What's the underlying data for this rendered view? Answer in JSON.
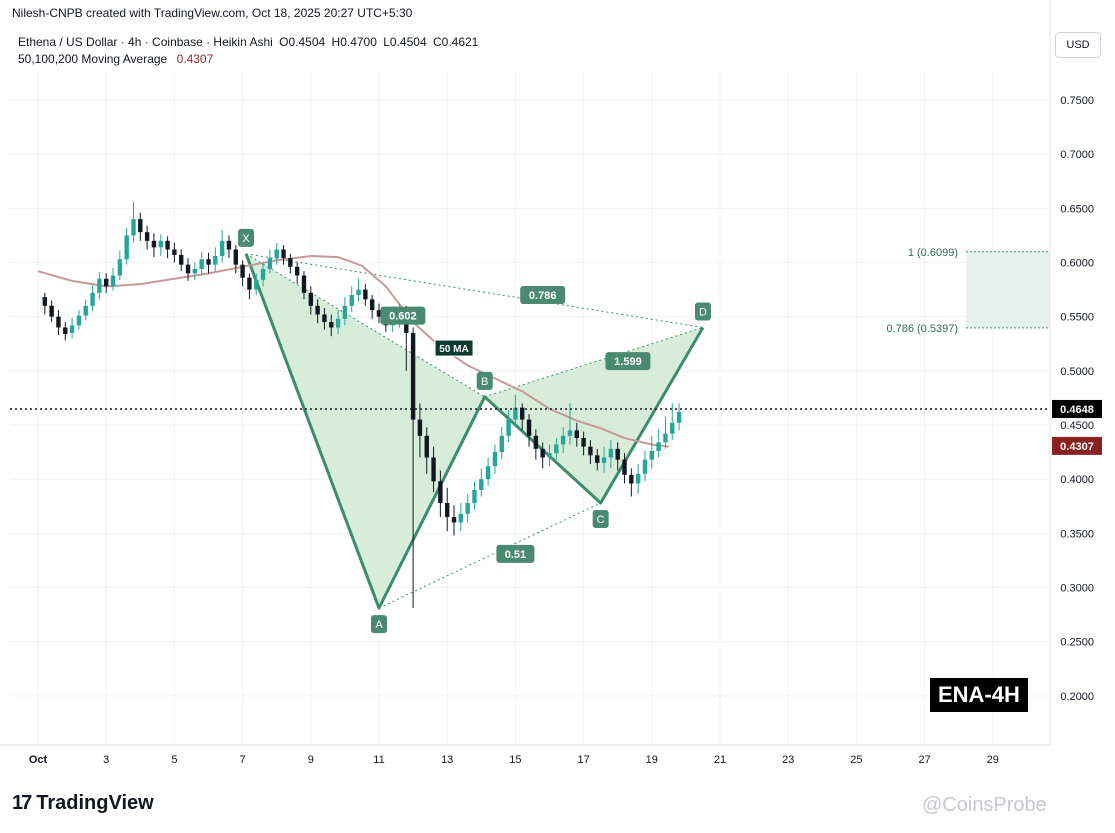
{
  "attribution": "Nilesh-CNPB created with TradingView.com, Oct 18, 2025 20:27 UTC+5:30",
  "legend": {
    "symbol": "Ethena / US Dollar · 4h · Coinbase · Heikin Ashi",
    "open": "O0.4504",
    "high": "H0.4700",
    "low": "L0.4504",
    "close": "C0.4621",
    "ma_label": "50,100,200 Moving Average",
    "ma_value": "0.4307"
  },
  "currency_button": "USD",
  "badge": "ENA-4H",
  "logo_text": "TradingView",
  "logo_mark": "17",
  "watermark": "@CoinsProbe",
  "colors": {
    "up": "#26a69a",
    "down": "#131722",
    "pattern_fill": "#c8e6c9",
    "pattern_line": "#3c8c6c",
    "ma": "#c49a9a",
    "label_bg": "#4a8a72",
    "ma_tag": "#8b2020"
  },
  "chart_data": {
    "type": "candlestick",
    "y_axis": {
      "ticks": [
        "0.7500",
        "0.7000",
        "0.6500",
        "0.6000",
        "0.5500",
        "0.5000",
        "0.4500",
        "0.4000",
        "0.3500",
        "0.3000",
        "0.2500",
        "0.2000"
      ],
      "range": [
        0.18,
        0.79
      ]
    },
    "x_axis": {
      "ticks": [
        "Oct",
        "3",
        "5",
        "7",
        "9",
        "11",
        "13",
        "15",
        "17",
        "19",
        "21",
        "23",
        "25",
        "27",
        "29"
      ]
    },
    "current_price": {
      "label": "0.4648",
      "value": 0.4648
    },
    "ma_price": {
      "label": "0.4307",
      "value": 0.4307
    },
    "ma_tag_text": "50 MA",
    "harmonic_points": [
      {
        "label": "X",
        "day": 7.1,
        "price": 0.608
      },
      {
        "label": "A",
        "day": 11.0,
        "price": 0.281
      },
      {
        "label": "B",
        "day": 14.1,
        "price": 0.476
      },
      {
        "label": "C",
        "day": 17.5,
        "price": 0.378
      },
      {
        "label": "D",
        "day": 20.5,
        "price": 0.54
      }
    ],
    "ratios": [
      {
        "label": "0.786",
        "day": 14.8,
        "price": 0.57
      },
      {
        "label": "0.602",
        "day": 10.7,
        "price": 0.551
      },
      {
        "label": "1.599",
        "day": 17.3,
        "price": 0.509
      },
      {
        "label": "0.51",
        "day": 14.0,
        "price": 0.331
      }
    ],
    "fib_levels": [
      {
        "label": "1 (0.6099)",
        "price": 0.6099
      },
      {
        "label": "0.786 (0.5397)",
        "price": 0.5397
      }
    ],
    "moving_average": [
      [
        0.0,
        0.592
      ],
      [
        1.0,
        0.583
      ],
      [
        2.0,
        0.578
      ],
      [
        3.0,
        0.58
      ],
      [
        4.0,
        0.585
      ],
      [
        5.0,
        0.59
      ],
      [
        6.0,
        0.596
      ],
      [
        7.0,
        0.602
      ],
      [
        8.0,
        0.606
      ],
      [
        8.8,
        0.605
      ],
      [
        9.5,
        0.597
      ],
      [
        10.2,
        0.578
      ],
      [
        11.0,
        0.545
      ],
      [
        11.8,
        0.522
      ],
      [
        12.6,
        0.505
      ],
      [
        13.4,
        0.493
      ],
      [
        14.2,
        0.481
      ],
      [
        15.0,
        0.465
      ],
      [
        15.8,
        0.454
      ],
      [
        16.5,
        0.447
      ],
      [
        17.2,
        0.438
      ],
      [
        18.0,
        0.432
      ],
      [
        18.5,
        0.43
      ]
    ],
    "candles": [
      [
        0.2,
        0.568,
        0.56,
        0.572,
        0.552
      ],
      [
        0.4,
        0.56,
        0.55,
        0.565,
        0.545
      ],
      [
        0.6,
        0.55,
        0.54,
        0.556,
        0.533
      ],
      [
        0.8,
        0.54,
        0.534,
        0.545,
        0.528
      ],
      [
        1.0,
        0.535,
        0.542,
        0.549,
        0.53
      ],
      [
        1.2,
        0.542,
        0.551,
        0.556,
        0.538
      ],
      [
        1.4,
        0.551,
        0.56,
        0.566,
        0.547
      ],
      [
        1.6,
        0.56,
        0.572,
        0.579,
        0.555
      ],
      [
        1.8,
        0.572,
        0.585,
        0.591,
        0.566
      ],
      [
        2.0,
        0.585,
        0.578,
        0.59,
        0.572
      ],
      [
        2.2,
        0.578,
        0.588,
        0.595,
        0.574
      ],
      [
        2.4,
        0.588,
        0.603,
        0.611,
        0.584
      ],
      [
        2.6,
        0.603,
        0.625,
        0.632,
        0.598
      ],
      [
        2.8,
        0.625,
        0.64,
        0.656,
        0.618
      ],
      [
        3.0,
        0.64,
        0.628,
        0.646,
        0.62
      ],
      [
        3.2,
        0.628,
        0.62,
        0.634,
        0.612
      ],
      [
        3.4,
        0.62,
        0.614,
        0.627,
        0.605
      ],
      [
        3.6,
        0.614,
        0.62,
        0.626,
        0.606
      ],
      [
        3.8,
        0.62,
        0.612,
        0.624,
        0.604
      ],
      [
        4.0,
        0.612,
        0.607,
        0.618,
        0.6
      ],
      [
        4.2,
        0.607,
        0.598,
        0.612,
        0.592
      ],
      [
        4.4,
        0.598,
        0.59,
        0.604,
        0.583
      ],
      [
        4.6,
        0.59,
        0.594,
        0.6,
        0.584
      ],
      [
        4.8,
        0.594,
        0.603,
        0.61,
        0.588
      ],
      [
        5.0,
        0.603,
        0.598,
        0.609,
        0.59
      ],
      [
        5.2,
        0.598,
        0.606,
        0.614,
        0.592
      ],
      [
        5.4,
        0.606,
        0.62,
        0.63,
        0.6
      ],
      [
        5.6,
        0.62,
        0.612,
        0.625,
        0.604
      ],
      [
        5.8,
        0.612,
        0.598,
        0.616,
        0.59
      ],
      [
        6.0,
        0.598,
        0.586,
        0.602,
        0.578
      ],
      [
        6.2,
        0.586,
        0.575,
        0.59,
        0.566
      ],
      [
        6.4,
        0.575,
        0.584,
        0.59,
        0.57
      ],
      [
        6.6,
        0.584,
        0.594,
        0.6,
        0.578
      ],
      [
        6.8,
        0.594,
        0.604,
        0.612,
        0.59
      ],
      [
        7.0,
        0.604,
        0.612,
        0.618,
        0.598
      ],
      [
        7.2,
        0.612,
        0.604,
        0.616,
        0.598
      ],
      [
        7.4,
        0.604,
        0.596,
        0.608,
        0.59
      ],
      [
        7.6,
        0.596,
        0.588,
        0.6,
        0.58
      ],
      [
        7.8,
        0.588,
        0.572,
        0.592,
        0.566
      ],
      [
        8.0,
        0.572,
        0.56,
        0.578,
        0.552
      ],
      [
        8.2,
        0.56,
        0.552,
        0.566,
        0.544
      ],
      [
        8.4,
        0.552,
        0.545,
        0.558,
        0.538
      ],
      [
        8.6,
        0.545,
        0.54,
        0.552,
        0.532
      ],
      [
        8.8,
        0.54,
        0.548,
        0.556,
        0.534
      ],
      [
        9.0,
        0.548,
        0.56,
        0.568,
        0.542
      ],
      [
        9.2,
        0.56,
        0.57,
        0.578,
        0.554
      ],
      [
        9.4,
        0.57,
        0.575,
        0.585,
        0.564
      ],
      [
        9.6,
        0.575,
        0.566,
        0.58,
        0.56
      ],
      [
        9.8,
        0.566,
        0.556,
        0.57,
        0.548
      ],
      [
        10.0,
        0.556,
        0.55,
        0.562,
        0.544
      ],
      [
        10.2,
        0.55,
        0.542,
        0.558,
        0.536
      ],
      [
        10.4,
        0.542,
        0.548,
        0.556,
        0.536
      ],
      [
        10.6,
        0.548,
        0.555,
        0.562,
        0.54
      ],
      [
        10.8,
        0.555,
        0.535,
        0.56,
        0.5
      ],
      [
        11.0,
        0.535,
        0.455,
        0.54,
        0.281
      ],
      [
        11.2,
        0.455,
        0.44,
        0.47,
        0.42
      ],
      [
        11.4,
        0.44,
        0.42,
        0.448,
        0.405
      ],
      [
        11.6,
        0.42,
        0.398,
        0.43,
        0.388
      ],
      [
        11.8,
        0.398,
        0.378,
        0.408,
        0.365
      ],
      [
        12.0,
        0.378,
        0.365,
        0.392,
        0.352
      ],
      [
        12.2,
        0.365,
        0.36,
        0.376,
        0.348
      ],
      [
        12.4,
        0.36,
        0.368,
        0.378,
        0.352
      ],
      [
        12.6,
        0.368,
        0.378,
        0.386,
        0.36
      ],
      [
        12.8,
        0.378,
        0.39,
        0.398,
        0.372
      ],
      [
        13.0,
        0.39,
        0.4,
        0.41,
        0.384
      ],
      [
        13.2,
        0.4,
        0.412,
        0.42,
        0.394
      ],
      [
        13.4,
        0.412,
        0.425,
        0.432,
        0.405
      ],
      [
        13.6,
        0.425,
        0.44,
        0.448,
        0.418
      ],
      [
        13.8,
        0.44,
        0.455,
        0.464,
        0.434
      ],
      [
        14.0,
        0.455,
        0.466,
        0.478,
        0.448
      ],
      [
        14.2,
        0.466,
        0.455,
        0.47,
        0.445
      ],
      [
        14.4,
        0.455,
        0.44,
        0.46,
        0.43
      ],
      [
        14.6,
        0.44,
        0.428,
        0.446,
        0.418
      ],
      [
        14.8,
        0.428,
        0.42,
        0.434,
        0.41
      ],
      [
        15.0,
        0.42,
        0.424,
        0.432,
        0.412
      ],
      [
        15.2,
        0.424,
        0.432,
        0.438,
        0.418
      ],
      [
        15.4,
        0.432,
        0.44,
        0.448,
        0.424
      ],
      [
        15.6,
        0.44,
        0.445,
        0.47,
        0.432
      ],
      [
        15.8,
        0.445,
        0.438,
        0.452,
        0.43
      ],
      [
        16.0,
        0.438,
        0.43,
        0.444,
        0.422
      ],
      [
        16.2,
        0.43,
        0.422,
        0.436,
        0.414
      ],
      [
        16.4,
        0.422,
        0.415,
        0.428,
        0.408
      ],
      [
        16.6,
        0.415,
        0.42,
        0.43,
        0.406
      ],
      [
        16.8,
        0.42,
        0.428,
        0.436,
        0.41
      ],
      [
        17.0,
        0.428,
        0.418,
        0.434,
        0.408
      ],
      [
        17.2,
        0.418,
        0.404,
        0.424,
        0.396
      ],
      [
        17.4,
        0.404,
        0.396,
        0.41,
        0.384
      ],
      [
        17.6,
        0.396,
        0.405,
        0.414,
        0.386
      ],
      [
        17.8,
        0.405,
        0.418,
        0.426,
        0.398
      ],
      [
        18.0,
        0.418,
        0.426,
        0.44,
        0.41
      ],
      [
        18.2,
        0.426,
        0.434,
        0.446,
        0.42
      ],
      [
        18.4,
        0.434,
        0.442,
        0.458,
        0.428
      ],
      [
        18.6,
        0.442,
        0.452,
        0.47,
        0.436
      ],
      [
        18.8,
        0.452,
        0.462,
        0.47,
        0.445
      ]
    ]
  }
}
